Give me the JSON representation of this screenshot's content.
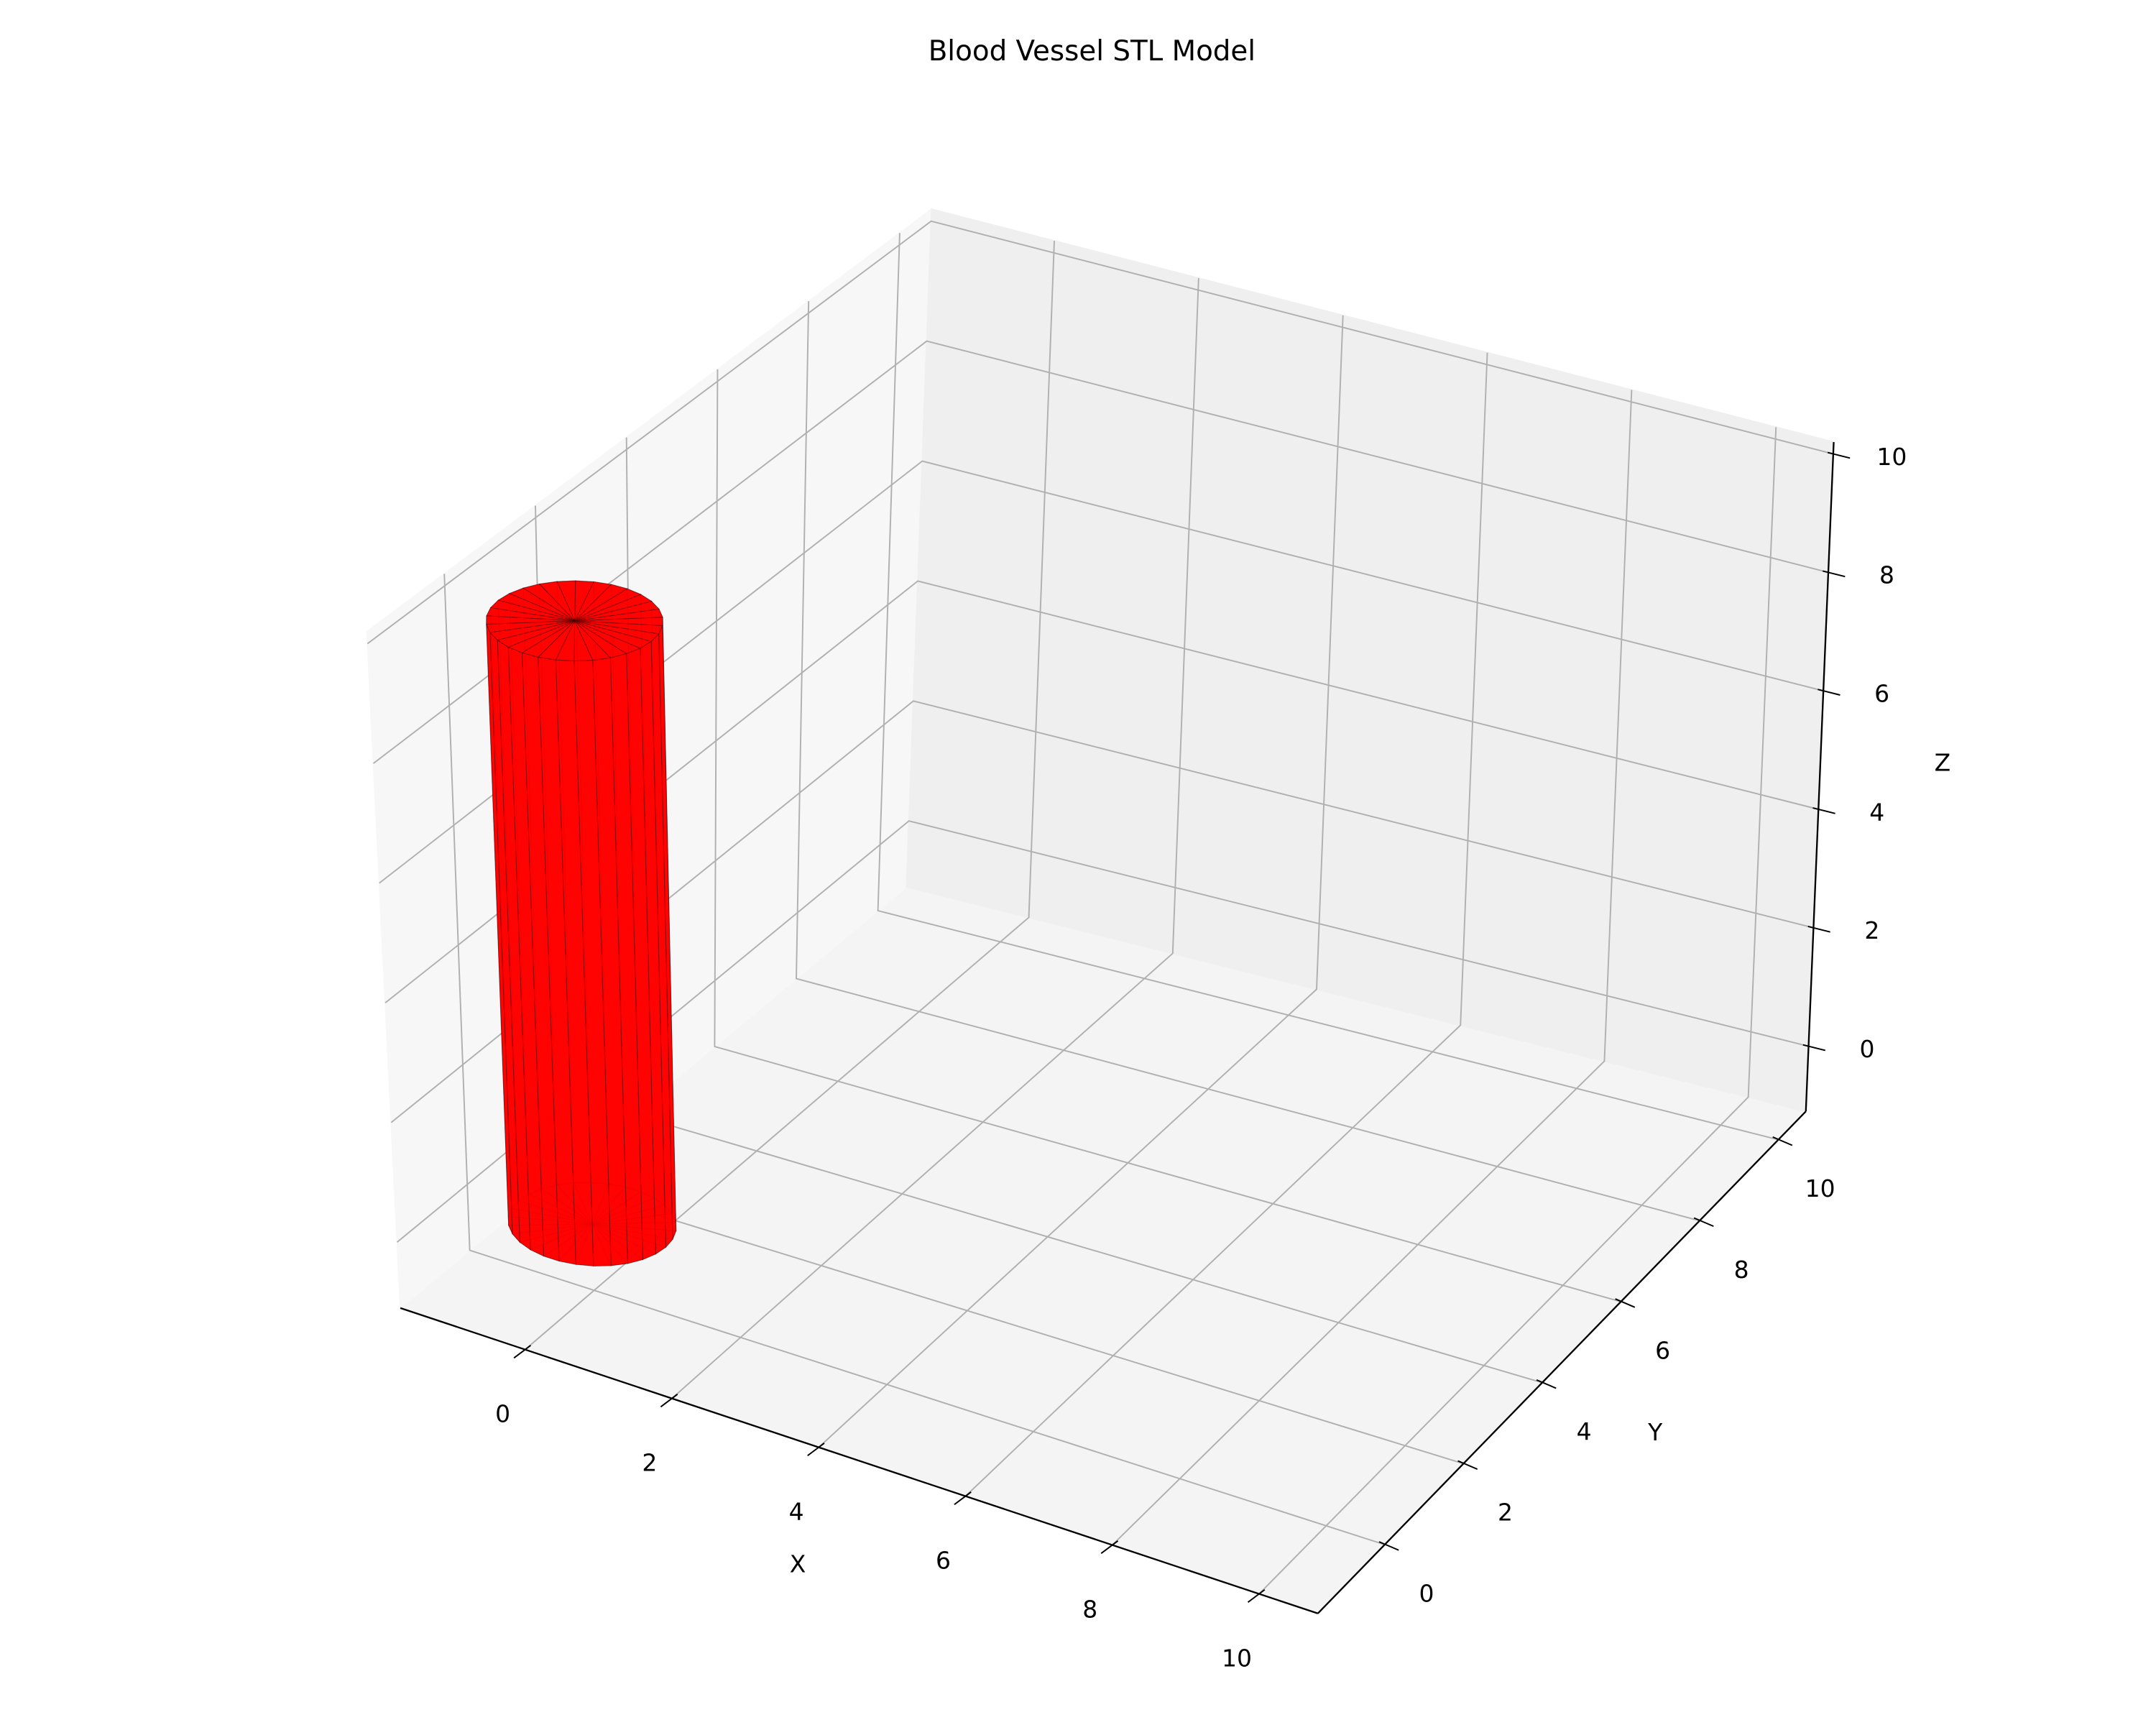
{
  "chart_data": {
    "type": "surface3d",
    "title": "Blood Vessel STL Model",
    "xlabel": "X",
    "ylabel": "Y",
    "zlabel": "Z",
    "xlim": [
      -1.7,
      10.8
    ],
    "ylim": [
      -1.7,
      10.7
    ],
    "zlim": [
      -1.1,
      10.2
    ],
    "xticks": [
      0,
      2,
      4,
      6,
      8,
      10
    ],
    "yticks": [
      0,
      2,
      4,
      6,
      8,
      10
    ],
    "zticks": [
      0,
      2,
      4,
      6,
      8,
      10
    ],
    "grid": true,
    "mesh": {
      "shape": "cylinder",
      "center_x": 0,
      "center_y": 0,
      "radius": 1,
      "z_bottom": 0,
      "z_top": 10,
      "facets": 30,
      "color": "#ff0000"
    }
  }
}
